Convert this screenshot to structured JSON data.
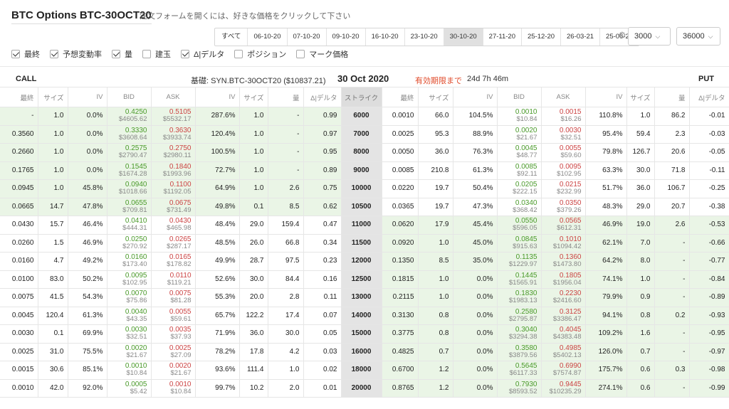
{
  "title": "BTC Options BTC-30OCT20",
  "hint": "注文フォームを開くには、好きな価格をクリックして下さい",
  "expiries": [
    "すべて",
    "06-10-20",
    "07-10-20",
    "09-10-20",
    "16-10-20",
    "23-10-20",
    "30-10-20",
    "27-11-20",
    "25-12-20",
    "26-03-21",
    "25-06-21"
  ],
  "active_expiry": "30-10-20",
  "min_strike": "3000",
  "max_strike": "36000",
  "toggles": [
    {
      "label": "最終",
      "on": true
    },
    {
      "label": "予想変動率",
      "on": true
    },
    {
      "label": "量",
      "on": true
    },
    {
      "label": "建玉",
      "on": false
    },
    {
      "label": "Δ|デルタ",
      "on": true
    },
    {
      "label": "ポジション",
      "on": false
    },
    {
      "label": "マーク価格",
      "on": false
    }
  ],
  "call_label": "CALL",
  "put_label": "PUT",
  "underlying": "基礎: SYN.BTC-30OCT20 ($10837.21)",
  "expiry_date": "30 Oct 2020",
  "expiry_label": "有効期限まで",
  "expiry_remaining": "24d 7h 46m",
  "headers_call": [
    "最終",
    "サイズ",
    "IV",
    "BID",
    "ASK",
    "IV",
    "サイズ",
    "量",
    "Δ|デルタ"
  ],
  "header_strike": "ストライク",
  "headers_put": [
    "最終",
    "サイズ",
    "IV",
    "BID",
    "ASK",
    "IV",
    "サイズ",
    "量",
    "Δ|デルタ"
  ],
  "colors": {
    "bid": "#4a9a2a",
    "ask": "#c44444",
    "itm": "#eaf5e6",
    "expiry": "#e04a2a"
  },
  "rows": [
    {
      "strike": "6000",
      "itm": true,
      "c": [
        "-",
        "1.0",
        "0.0%",
        "0.4250",
        "$4605.62",
        "0.5105",
        "$5532.17",
        "287.6%",
        "1.0",
        "-",
        "0.99"
      ],
      "p": [
        "0.0010",
        "66.0",
        "104.5%",
        "0.0010",
        "$10.84",
        "0.0015",
        "$16.26",
        "110.8%",
        "1.0",
        "86.2",
        "-0.01"
      ]
    },
    {
      "strike": "7000",
      "itm": true,
      "c": [
        "0.3560",
        "1.0",
        "0.0%",
        "0.3330",
        "$3608.64",
        "0.3630",
        "$3933.74",
        "120.4%",
        "1.0",
        "-",
        "0.97"
      ],
      "p": [
        "0.0025",
        "95.3",
        "88.9%",
        "0.0020",
        "$21.67",
        "0.0030",
        "$32.51",
        "95.4%",
        "59.4",
        "2.3",
        "-0.03"
      ]
    },
    {
      "strike": "8000",
      "itm": true,
      "c": [
        "0.2660",
        "1.0",
        "0.0%",
        "0.2575",
        "$2790.47",
        "0.2750",
        "$2980.11",
        "100.5%",
        "1.0",
        "-",
        "0.95"
      ],
      "p": [
        "0.0050",
        "36.0",
        "76.3%",
        "0.0045",
        "$48.77",
        "0.0055",
        "$59.60",
        "79.8%",
        "126.7",
        "20.6",
        "-0.05"
      ]
    },
    {
      "strike": "9000",
      "itm": true,
      "c": [
        "0.1765",
        "1.0",
        "0.0%",
        "0.1545",
        "$1674.28",
        "0.1840",
        "$1993.96",
        "72.7%",
        "1.0",
        "-",
        "0.89"
      ],
      "p": [
        "0.0085",
        "210.8",
        "61.3%",
        "0.0085",
        "$92.11",
        "0.0095",
        "$102.95",
        "63.3%",
        "30.0",
        "71.8",
        "-0.11"
      ]
    },
    {
      "strike": "10000",
      "itm": true,
      "c": [
        "0.0945",
        "1.0",
        "45.8%",
        "0.0940",
        "$1018.66",
        "0.1100",
        "$1192.05",
        "64.9%",
        "1.0",
        "2.6",
        "0.75"
      ],
      "p": [
        "0.0220",
        "19.7",
        "50.4%",
        "0.0205",
        "$222.15",
        "0.0215",
        "$232.99",
        "51.7%",
        "36.0",
        "106.7",
        "-0.25"
      ]
    },
    {
      "strike": "10500",
      "itm": true,
      "c": [
        "0.0665",
        "14.7",
        "47.8%",
        "0.0655",
        "$709.81",
        "0.0675",
        "$731.49",
        "49.8%",
        "0.1",
        "8.5",
        "0.62"
      ],
      "p": [
        "0.0365",
        "19.7",
        "47.3%",
        "0.0340",
        "$368.42",
        "0.0350",
        "$379.26",
        "48.3%",
        "29.0",
        "20.7",
        "-0.38"
      ]
    },
    {
      "strike": "11000",
      "itm": false,
      "c": [
        "0.0430",
        "15.7",
        "46.4%",
        "0.0410",
        "$444.31",
        "0.0430",
        "$465.98",
        "48.4%",
        "29.0",
        "159.4",
        "0.47"
      ],
      "p": [
        "0.0620",
        "17.9",
        "45.4%",
        "0.0550",
        "$596.05",
        "0.0565",
        "$612.31",
        "46.9%",
        "19.0",
        "2.6",
        "-0.53"
      ]
    },
    {
      "strike": "11500",
      "itm": false,
      "c": [
        "0.0260",
        "1.5",
        "46.9%",
        "0.0250",
        "$270.92",
        "0.0265",
        "$287.17",
        "48.5%",
        "26.0",
        "66.8",
        "0.34"
      ],
      "p": [
        "0.0920",
        "1.0",
        "45.0%",
        "0.0845",
        "$915.63",
        "0.1010",
        "$1094.42",
        "62.1%",
        "7.0",
        "-",
        "-0.66"
      ]
    },
    {
      "strike": "12000",
      "itm": false,
      "c": [
        "0.0160",
        "4.7",
        "49.2%",
        "0.0160",
        "$173.40",
        "0.0165",
        "$178.82",
        "49.9%",
        "28.7",
        "97.5",
        "0.23"
      ],
      "p": [
        "0.1350",
        "8.5",
        "35.0%",
        "0.1135",
        "$1229.97",
        "0.1360",
        "$1473.80",
        "64.2%",
        "8.0",
        "-",
        "-0.77"
      ]
    },
    {
      "strike": "12500",
      "itm": false,
      "c": [
        "0.0100",
        "83.0",
        "50.2%",
        "0.0095",
        "$102.95",
        "0.0110",
        "$119.21",
        "52.6%",
        "30.0",
        "84.4",
        "0.16"
      ],
      "p": [
        "0.1815",
        "1.0",
        "0.0%",
        "0.1445",
        "$1565.91",
        "0.1805",
        "$1956.04",
        "74.1%",
        "1.0",
        "-",
        "-0.84"
      ]
    },
    {
      "strike": "13000",
      "itm": false,
      "c": [
        "0.0075",
        "41.5",
        "54.3%",
        "0.0070",
        "$75.86",
        "0.0075",
        "$81.28",
        "55.3%",
        "20.0",
        "2.8",
        "0.11"
      ],
      "p": [
        "0.2115",
        "1.0",
        "0.0%",
        "0.1830",
        "$1983.13",
        "0.2230",
        "$2416.60",
        "79.9%",
        "0.9",
        "-",
        "-0.89"
      ]
    },
    {
      "strike": "14000",
      "itm": false,
      "c": [
        "0.0045",
        "120.4",
        "61.3%",
        "0.0040",
        "$43.35",
        "0.0055",
        "$59.61",
        "65.7%",
        "122.2",
        "17.4",
        "0.07"
      ],
      "p": [
        "0.3130",
        "0.8",
        "0.0%",
        "0.2580",
        "$2795.87",
        "0.3125",
        "$3386.47",
        "94.1%",
        "0.8",
        "0.2",
        "-0.93"
      ]
    },
    {
      "strike": "15000",
      "itm": false,
      "c": [
        "0.0030",
        "0.1",
        "69.9%",
        "0.0030",
        "$32.51",
        "0.0035",
        "$37.93",
        "71.9%",
        "36.0",
        "30.0",
        "0.05"
      ],
      "p": [
        "0.3775",
        "0.8",
        "0.0%",
        "0.3040",
        "$3294.38",
        "0.4045",
        "$4383.48",
        "109.2%",
        "1.6",
        "-",
        "-0.95"
      ]
    },
    {
      "strike": "16000",
      "itm": false,
      "c": [
        "0.0025",
        "31.0",
        "75.5%",
        "0.0020",
        "$21.67",
        "0.0025",
        "$27.09",
        "78.2%",
        "17.8",
        "4.2",
        "0.03"
      ],
      "p": [
        "0.4825",
        "0.7",
        "0.0%",
        "0.3580",
        "$3879.56",
        "0.4985",
        "$5402.13",
        "126.0%",
        "0.7",
        "-",
        "-0.97"
      ]
    },
    {
      "strike": "18000",
      "itm": false,
      "c": [
        "0.0015",
        "30.6",
        "85.1%",
        "0.0010",
        "$10.84",
        "0.0020",
        "$21.67",
        "93.6%",
        "111.4",
        "1.0",
        "0.02"
      ],
      "p": [
        "0.6700",
        "1.2",
        "0.0%",
        "0.5645",
        "$6117.33",
        "0.6990",
        "$7574.87",
        "175.7%",
        "0.6",
        "0.3",
        "-0.98"
      ]
    },
    {
      "strike": "20000",
      "itm": false,
      "c": [
        "0.0010",
        "42.0",
        "92.0%",
        "0.0005",
        "$5.42",
        "0.0010",
        "$10.84",
        "99.7%",
        "10.2",
        "2.0",
        "0.01"
      ],
      "p": [
        "0.8765",
        "1.2",
        "0.0%",
        "0.7930",
        "$8593.52",
        "0.9445",
        "$10235.29",
        "274.1%",
        "0.6",
        "-",
        "-0.99"
      ]
    }
  ]
}
